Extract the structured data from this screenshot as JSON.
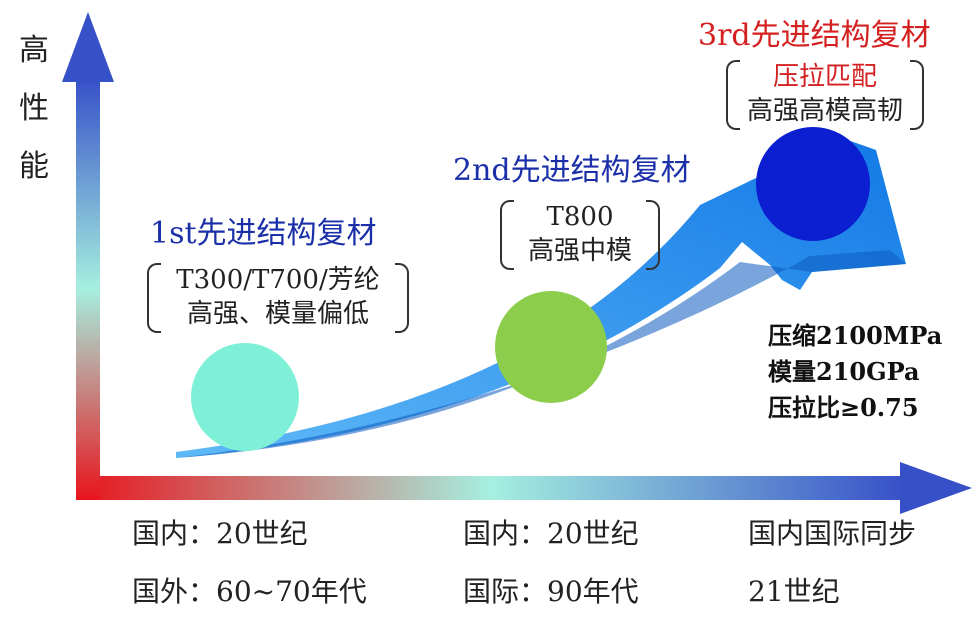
{
  "y_axis_label": [
    "高",
    "性",
    "能"
  ],
  "generations": [
    {
      "title": "1st先进结构复材",
      "title_color": "#1b2fa8",
      "bracket_lines": [
        "T300/T700/芳纶",
        "高强、模量偏低"
      ],
      "ball_color": "#7ff0d8"
    },
    {
      "title": "2nd先进结构复材",
      "title_color": "#1b2fa8",
      "bracket_lines": [
        "T800",
        "高强中模"
      ],
      "ball_color": "#8ccd4c"
    },
    {
      "title": "3rd先进结构复材",
      "title_color": "#d42020",
      "bracket_lines": [
        "压拉匹配",
        "高强高模高韧"
      ],
      "ball_color": "#0b1fd0"
    }
  ],
  "specs": [
    "压缩2100MPa",
    "模量210GPa",
    "压拉比≥0.75"
  ],
  "eras": [
    [
      "国内：20世纪",
      "国外：60~70年代"
    ],
    [
      "国内：20世纪",
      "国际：90年代"
    ],
    [
      "国内国际同步",
      "21世纪"
    ]
  ],
  "colors": {
    "axis_start": "#e8141c",
    "axis_mid": "#9ff0de",
    "axis_end": "#3f5bd0",
    "curve_arrow": "#2196f0"
  }
}
